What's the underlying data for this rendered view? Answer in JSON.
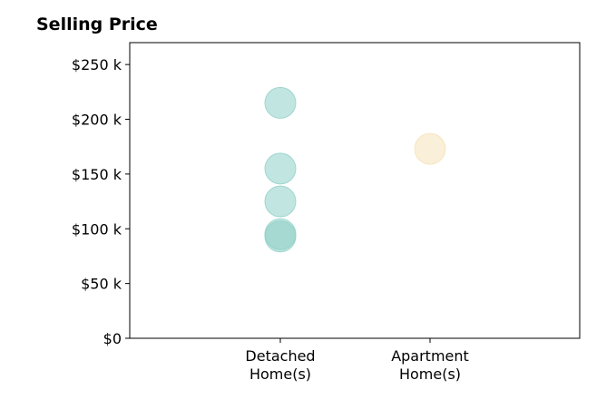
{
  "chart_data": {
    "type": "scatter",
    "title": "Selling Price",
    "xlabel": "",
    "ylabel": "",
    "categories": [
      [
        "Detached",
        "Home(s)"
      ],
      [
        "Apartment",
        "Home(s)"
      ]
    ],
    "ylim": [
      0,
      270000
    ],
    "yticks": [
      0,
      50000,
      100000,
      150000,
      200000,
      250000
    ],
    "ytick_labels": [
      "$0",
      "$50 k",
      "$100 k",
      "$150 k",
      "$200 k",
      "$250 k"
    ],
    "grid": false,
    "series": [
      {
        "category_index": 0,
        "color": "#8ecfc7",
        "values": [
          215000,
          155000,
          125000,
          95000,
          93000
        ]
      },
      {
        "category_index": 1,
        "color": "#f5e2b8",
        "values": [
          173000
        ]
      }
    ]
  }
}
